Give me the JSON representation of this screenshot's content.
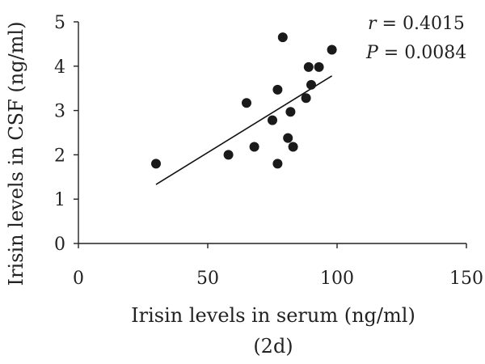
{
  "chart_data": {
    "type": "scatter",
    "xlabel": "Irisin levels in serum (ng/ml)",
    "xlabel_sub": "(2d)",
    "ylabel": "Irisin levels in CSF (ng/ml)",
    "xlim": [
      0,
      150
    ],
    "ylim": [
      0,
      5
    ],
    "xticks": [
      0,
      50,
      100,
      150
    ],
    "yticks": [
      0,
      1,
      2,
      3,
      4,
      5
    ],
    "grid": false,
    "series": [
      {
        "points": [
          {
            "x": 30,
            "y": 1.8
          },
          {
            "x": 58,
            "y": 2.0
          },
          {
            "x": 65,
            "y": 3.17
          },
          {
            "x": 68,
            "y": 2.18
          },
          {
            "x": 75,
            "y": 2.78
          },
          {
            "x": 77,
            "y": 3.47
          },
          {
            "x": 77,
            "y": 1.8
          },
          {
            "x": 79,
            "y": 4.65
          },
          {
            "x": 81,
            "y": 2.38
          },
          {
            "x": 82,
            "y": 2.97
          },
          {
            "x": 83,
            "y": 2.18
          },
          {
            "x": 88,
            "y": 3.28
          },
          {
            "x": 89,
            "y": 3.98
          },
          {
            "x": 90,
            "y": 3.58
          },
          {
            "x": 93,
            "y": 3.98
          },
          {
            "x": 98,
            "y": 4.37
          }
        ],
        "trendline": {
          "x": [
            30,
            98
          ],
          "y": [
            1.33,
            3.78
          ]
        }
      }
    ],
    "annotations": {
      "r_symbol": "r",
      "r_value": " = 0.4015",
      "p_symbol": "P",
      "p_value": " = 0.0084"
    }
  }
}
